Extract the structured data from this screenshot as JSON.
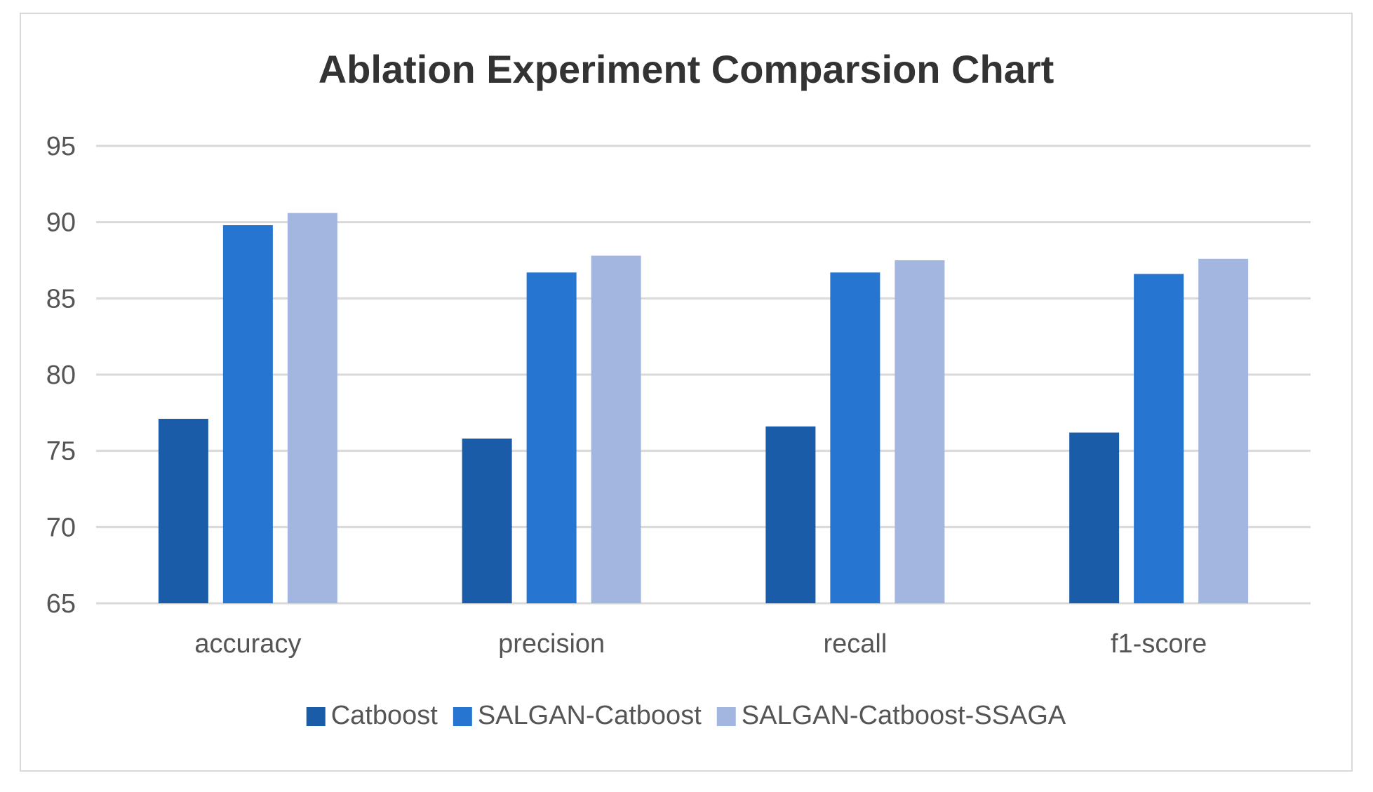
{
  "chart_data": {
    "type": "bar",
    "title": "Ablation Experiment Comparsion Chart",
    "xlabel": "",
    "ylabel": "",
    "categories": [
      "accuracy",
      "precision",
      "recall",
      "f1-score"
    ],
    "series": [
      {
        "name": "Catboost",
        "values": [
          77.1,
          75.8,
          76.6,
          76.2
        ],
        "color": "#1a5ca8"
      },
      {
        "name": "SALGAN-Catboost",
        "values": [
          89.8,
          86.7,
          86.7,
          86.6
        ],
        "color": "#2675d0"
      },
      {
        "name": "SALGAN-Catboost-SSAGA",
        "values": [
          90.6,
          87.8,
          87.5,
          87.6
        ],
        "color": "#a3b6e0"
      }
    ],
    "ylim": [
      65,
      95
    ],
    "yticks": [
      65,
      70,
      75,
      80,
      85,
      90,
      95
    ],
    "grid": true,
    "legend_position": "bottom",
    "gridline_color": "#d9d9d9"
  }
}
